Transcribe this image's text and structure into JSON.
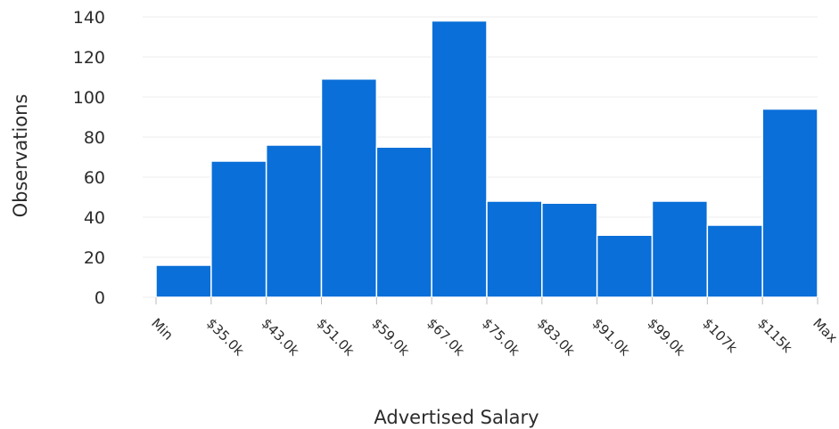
{
  "chart_data": {
    "type": "bar",
    "title": "",
    "xlabel": "Advertised Salary",
    "ylabel": "Observations",
    "ylim": [
      0,
      140
    ],
    "yticks": [
      "0",
      "20",
      "40",
      "60",
      "80",
      "100",
      "120",
      "140"
    ],
    "bin_edges": [
      "Min",
      "$35.0k",
      "$43.0k",
      "$51.0k",
      "$59.0k",
      "$67.0k",
      "$75.0k",
      "$83.0k",
      "$91.0k",
      "$99.0k",
      "$107k",
      "$115k",
      "Max"
    ],
    "values": [
      16,
      68,
      76,
      109,
      75,
      138,
      48,
      47,
      31,
      48,
      36,
      94
    ],
    "grid": true,
    "bar_color": "#0a6fd8"
  }
}
